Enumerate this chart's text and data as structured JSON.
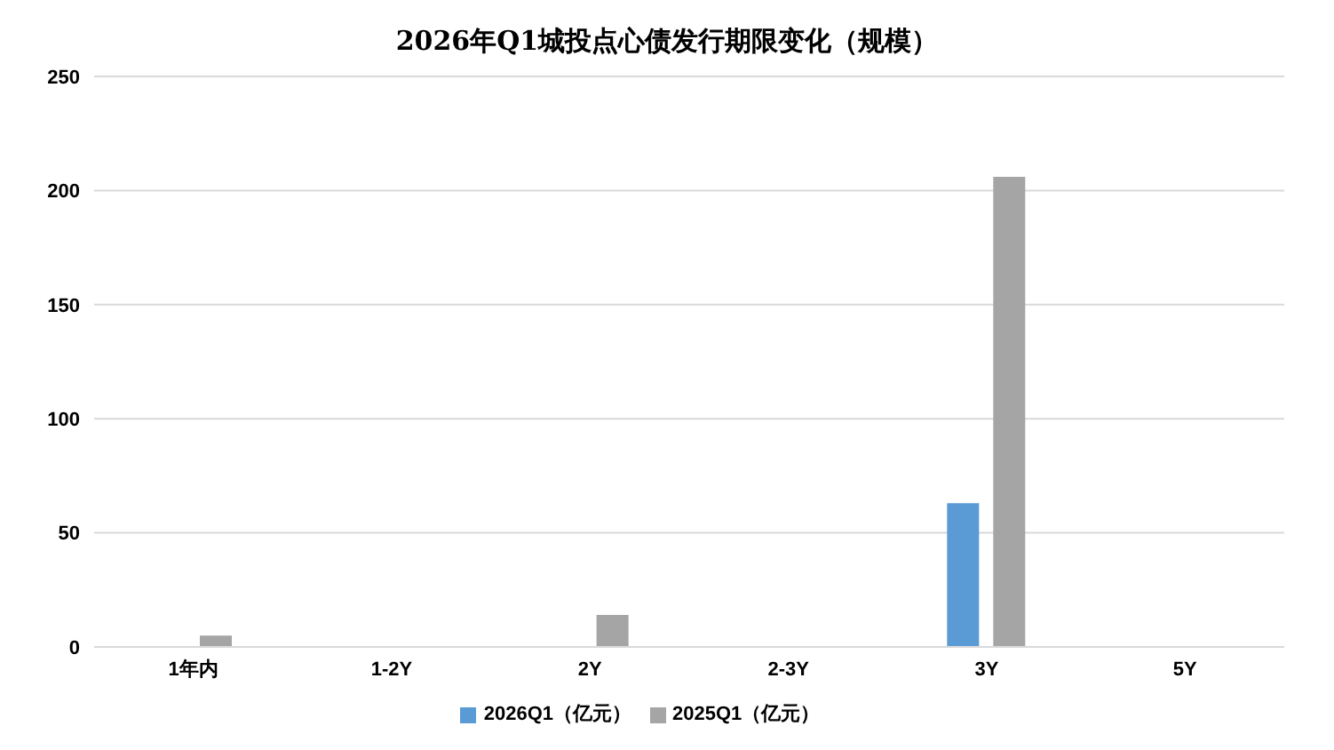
{
  "chart_data": {
    "type": "bar",
    "title": "2026年Q1城投点心债发行期限变化（规模）",
    "categories": [
      "1年内",
      "1-2Y",
      "2Y",
      "2-3Y",
      "3Y",
      "5Y"
    ],
    "series": [
      {
        "name": "2026Q1（亿元）",
        "color": "#5b9bd5",
        "values": [
          null,
          null,
          null,
          null,
          63,
          null
        ]
      },
      {
        "name": "2025Q1（亿元）",
        "color": "#a5a5a5",
        "values": [
          5,
          null,
          14,
          null,
          206,
          null
        ]
      }
    ],
    "ylim": [
      0,
      250
    ],
    "yticks": [
      0,
      50,
      100,
      150,
      200,
      250
    ],
    "grid": "y",
    "legend": "bottom"
  }
}
